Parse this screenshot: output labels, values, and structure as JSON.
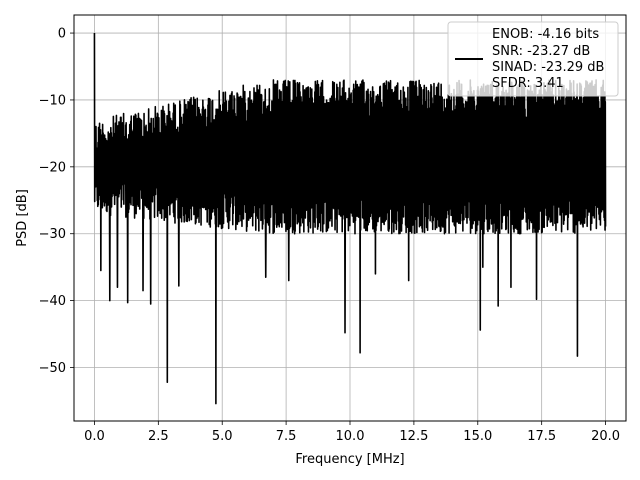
{
  "chart_data": {
    "type": "line",
    "title": "",
    "xlabel": "Frequency [MHz]",
    "ylabel": "PSD [dB]",
    "xlim": [
      -0.8,
      20.8
    ],
    "ylim": [
      -58,
      2.7
    ],
    "xticks": [
      0.0,
      2.5,
      5.0,
      7.5,
      10.0,
      12.5,
      15.0,
      17.5,
      20.0
    ],
    "xtick_labels": [
      "0.0",
      "2.5",
      "5.0",
      "7.5",
      "10.0",
      "12.5",
      "15.0",
      "17.5",
      "20.0"
    ],
    "yticks": [
      0,
      -10,
      -20,
      -30,
      -40,
      -50
    ],
    "ytick_labels": [
      "0",
      "−10",
      "−20",
      "−30",
      "−40",
      "−50"
    ],
    "grid": true,
    "legend_placement": "top-right",
    "series": [
      {
        "legend_lines": [
          "ENOB: -4.16 bits",
          "SNR: -23.27 dB",
          "SINAD: -23.29 dB",
          "SFDR: 3.41"
        ],
        "color": "#000000",
        "x_range": [
          0.0,
          20.0
        ],
        "num_points": 2000,
        "noise_band_low": [
          -27,
          -30
        ],
        "noise_band_high": [
          -13,
          -7
        ],
        "peaks": [
          {
            "x": 0.0,
            "y": 0.0
          }
        ],
        "dips": [
          {
            "x": 0.25,
            "y": -35.5
          },
          {
            "x": 0.6,
            "y": -40.0
          },
          {
            "x": 0.9,
            "y": -38.0
          },
          {
            "x": 1.3,
            "y": -40.3
          },
          {
            "x": 1.9,
            "y": -38.5
          },
          {
            "x": 2.2,
            "y": -40.5
          },
          {
            "x": 2.85,
            "y": -52.2
          },
          {
            "x": 3.3,
            "y": -37.8
          },
          {
            "x": 4.75,
            "y": -55.4
          },
          {
            "x": 6.7,
            "y": -36.5
          },
          {
            "x": 7.6,
            "y": -37.0
          },
          {
            "x": 9.8,
            "y": -44.8
          },
          {
            "x": 10.4,
            "y": -47.8
          },
          {
            "x": 11.0,
            "y": -36.0
          },
          {
            "x": 12.3,
            "y": -37.0
          },
          {
            "x": 15.1,
            "y": -44.4
          },
          {
            "x": 15.2,
            "y": -35.0
          },
          {
            "x": 15.8,
            "y": -40.8
          },
          {
            "x": 16.3,
            "y": -38.0
          },
          {
            "x": 17.3,
            "y": -39.8
          },
          {
            "x": 18.9,
            "y": -48.3
          }
        ]
      }
    ]
  }
}
